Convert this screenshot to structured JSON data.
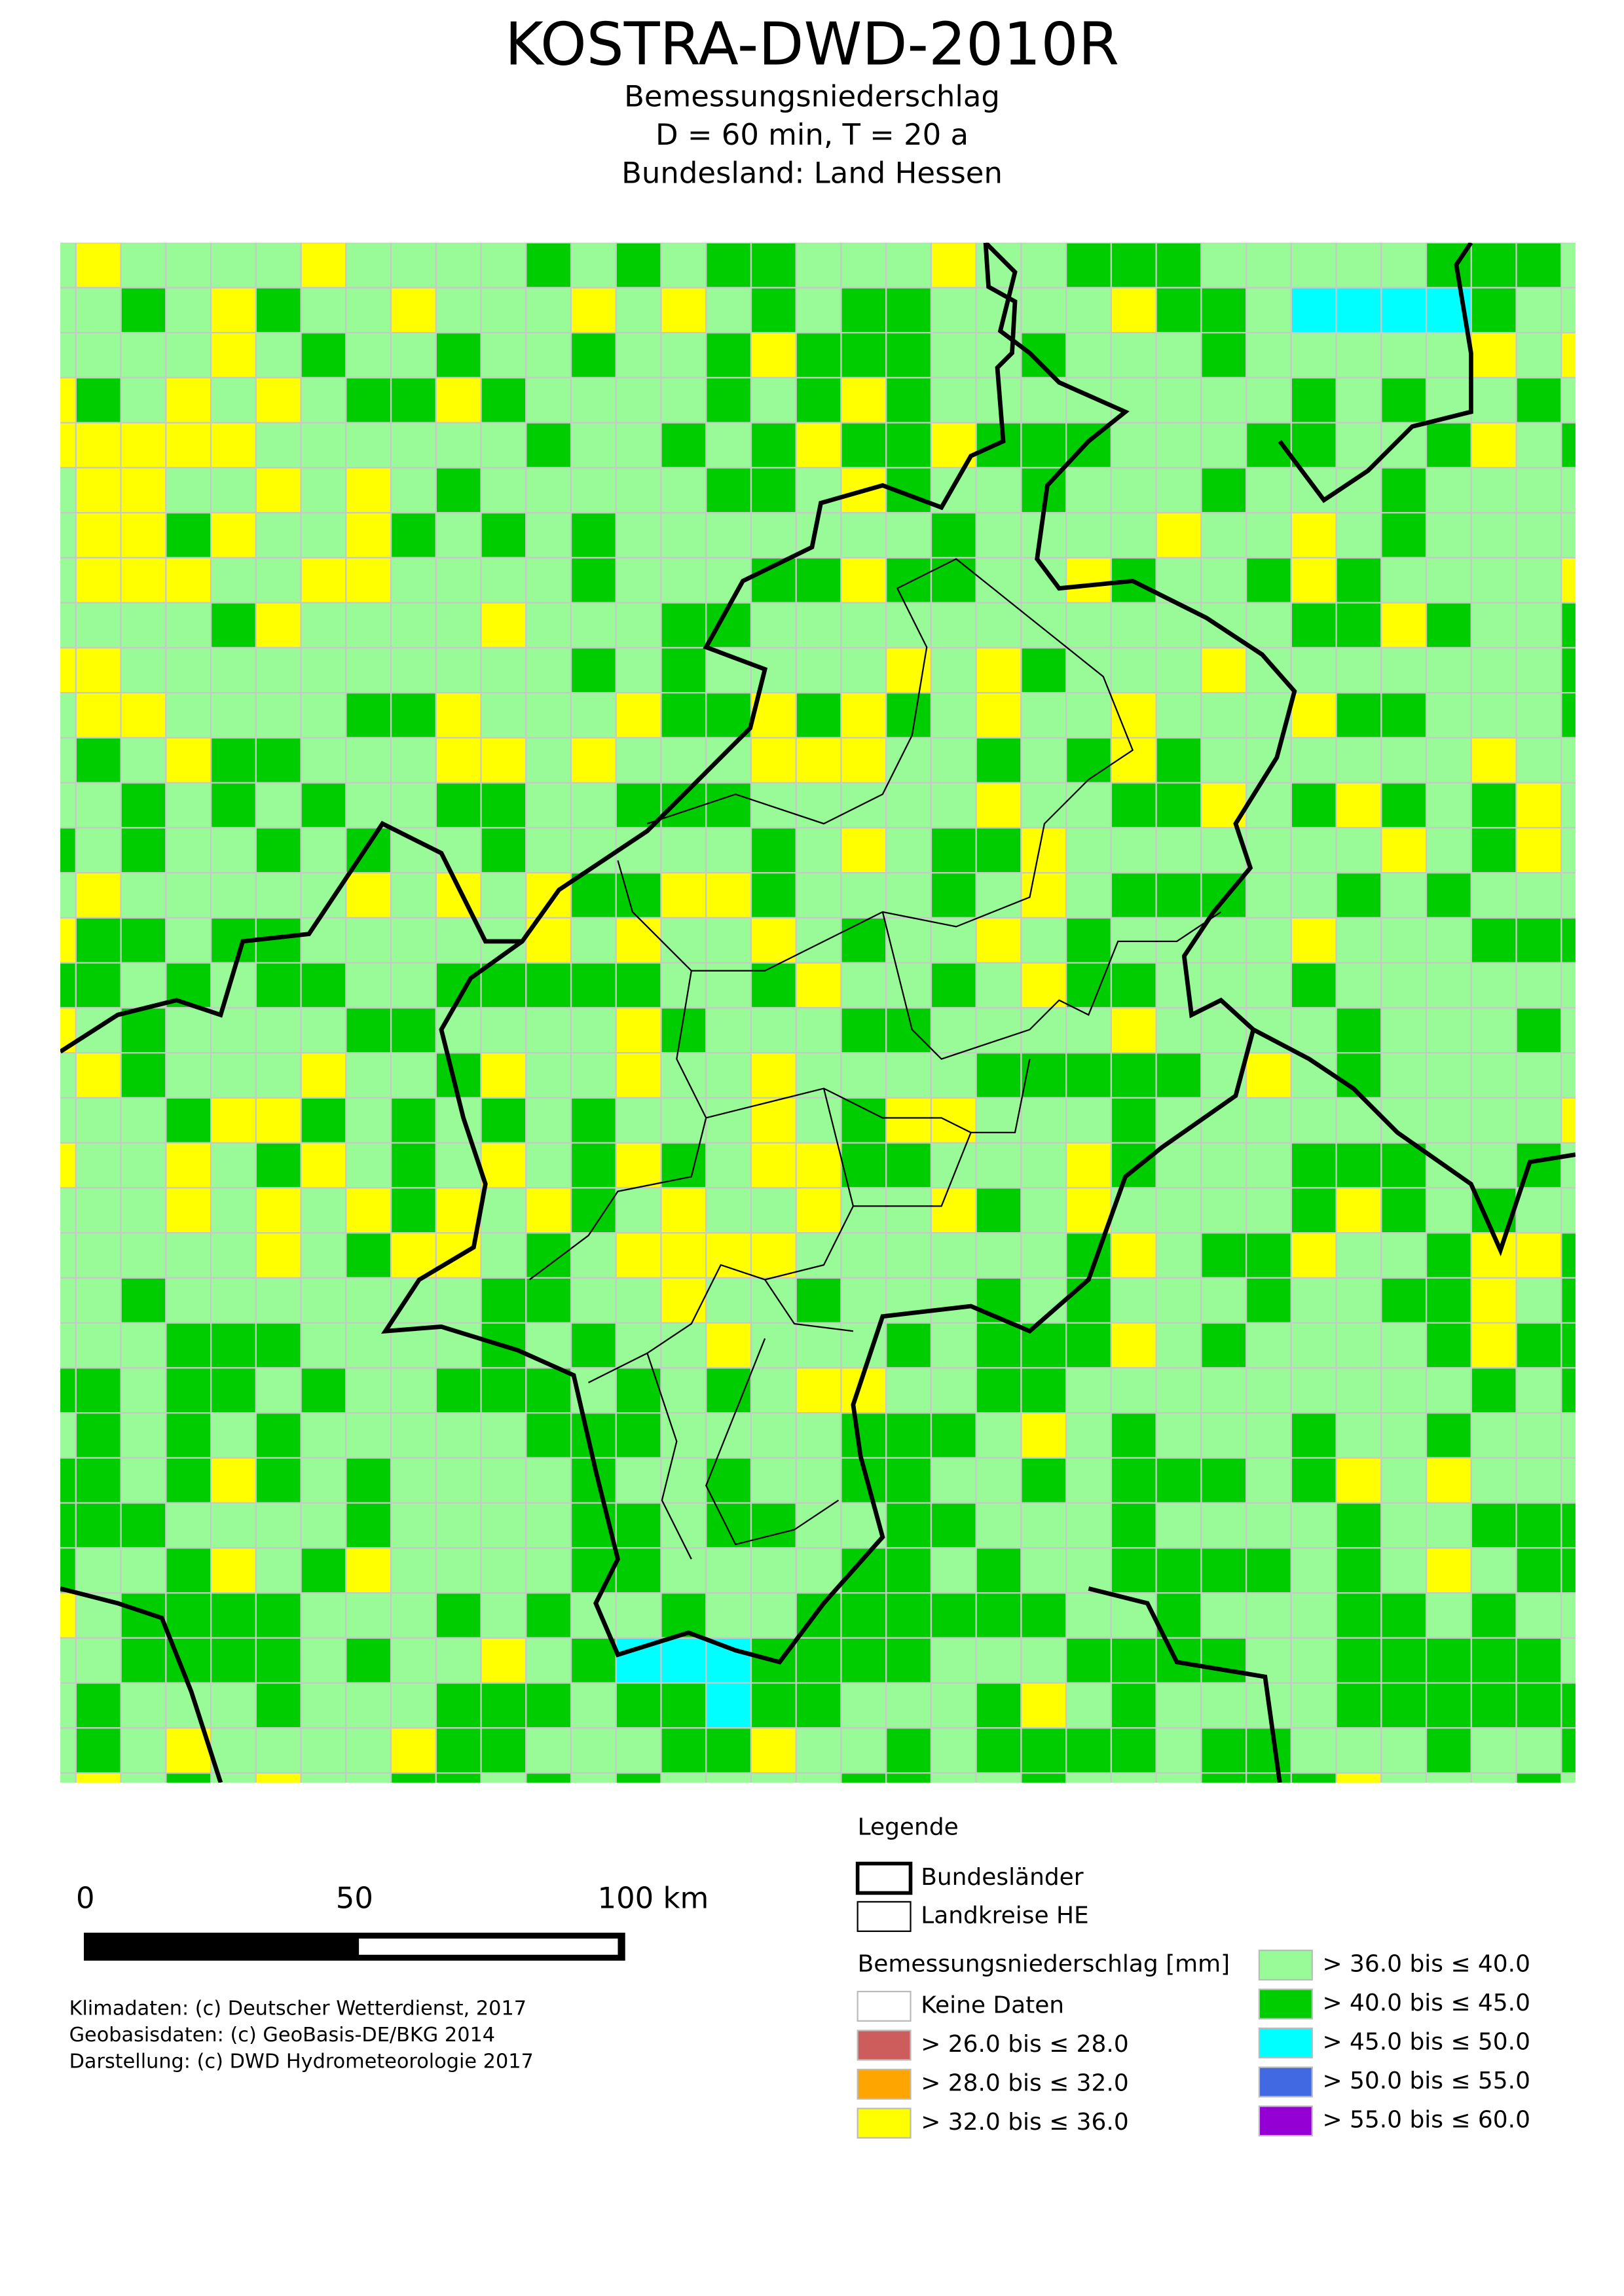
{
  "header": {
    "title": "KOSTRA-DWD-2010R",
    "subtitle_lines": [
      "Bemessungsniederschlag",
      "D = 60 min,  T = 20 a",
      "Bundesland: Land Hessen"
    ]
  },
  "scale_bar": {
    "labels": [
      "0",
      "50",
      "100 km"
    ]
  },
  "credits": [
    "Klimadaten: (c) Deutscher Wetterdienst, 2017",
    "Geobasisdaten: (c) GeoBasis-DE/BKG 2014",
    "Darstellung: (c) DWD Hydrometeorologie 2017"
  ],
  "legend": {
    "title": "Legende",
    "boundaries": [
      {
        "label": "Bundesländer"
      },
      {
        "label": "Landkreise HE"
      }
    ],
    "classes_title": "Bemessungsniederschlag [mm]",
    "classes": [
      {
        "label": "Keine Daten",
        "color": "#ffffff"
      },
      {
        "label": "> 26.0 bis ≤ 28.0",
        "color": "#cd5c5c"
      },
      {
        "label": "> 28.0 bis ≤ 32.0",
        "color": "#ffa500"
      },
      {
        "label": "> 32.0 bis ≤ 36.0",
        "color": "#ffff00"
      },
      {
        "label": "> 36.0 bis ≤ 40.0",
        "color": "#98fb98"
      },
      {
        "label": "> 40.0 bis ≤ 45.0",
        "color": "#00cd00"
      },
      {
        "label": "> 45.0 bis ≤ 50.0",
        "color": "#00ffff"
      },
      {
        "label": "> 50.0 bis ≤ 55.0",
        "color": "#4169e1"
      },
      {
        "label": "> 55.0 bis ≤ 60.0",
        "color": "#9400d3"
      }
    ]
  }
}
